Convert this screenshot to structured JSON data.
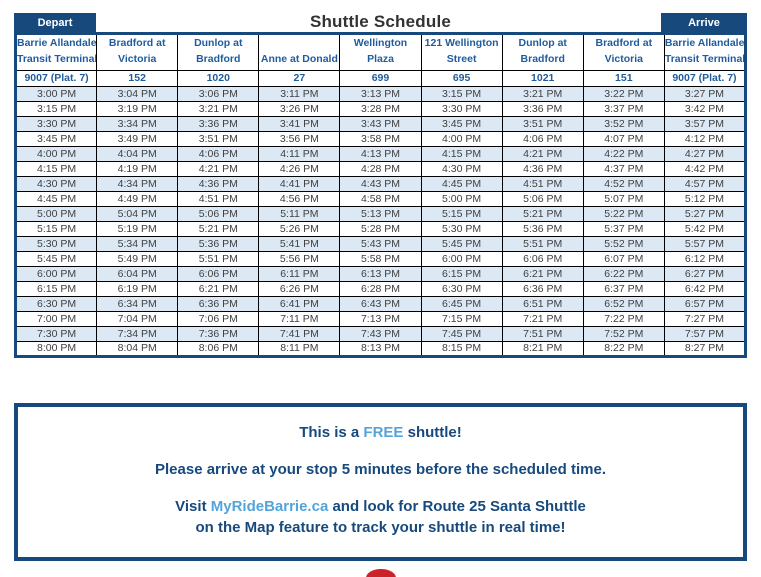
{
  "title": "Shuttle Schedule",
  "badges": {
    "depart": "Depart",
    "arrive": "Arrive"
  },
  "table": {
    "stops": [
      {
        "name_lines": [
          "Barrie Allandale",
          "Transit Terminal"
        ],
        "stop_number": "9007 (Plat. 7)"
      },
      {
        "name_lines": [
          "Bradford at",
          "Victoria"
        ],
        "stop_number": "152"
      },
      {
        "name_lines": [
          "Dunlop at",
          "Bradford"
        ],
        "stop_number": "1020"
      },
      {
        "name_lines": [
          "Anne at Donald"
        ],
        "stop_number": "27"
      },
      {
        "name_lines": [
          "Wellington",
          "Plaza"
        ],
        "stop_number": "699"
      },
      {
        "name_lines": [
          "121 Wellington",
          "Street"
        ],
        "stop_number": "695"
      },
      {
        "name_lines": [
          "Dunlop at",
          "Bradford"
        ],
        "stop_number": "1021"
      },
      {
        "name_lines": [
          "Bradford at",
          "Victoria"
        ],
        "stop_number": "151"
      },
      {
        "name_lines": [
          "Barrie Allandale",
          "Transit Terminal"
        ],
        "stop_number": "9007 (Plat. 7)"
      }
    ],
    "rows": [
      [
        "3:00 PM",
        "3:04 PM",
        "3:06 PM",
        "3:11 PM",
        "3:13 PM",
        "3:15 PM",
        "3:21 PM",
        "3:22 PM",
        "3:27 PM"
      ],
      [
        "3:15 PM",
        "3:19 PM",
        "3:21 PM",
        "3:26 PM",
        "3:28 PM",
        "3:30 PM",
        "3:36 PM",
        "3:37 PM",
        "3:42 PM"
      ],
      [
        "3:30 PM",
        "3:34 PM",
        "3:36 PM",
        "3:41 PM",
        "3:43 PM",
        "3:45 PM",
        "3:51 PM",
        "3:52 PM",
        "3:57 PM"
      ],
      [
        "3:45 PM",
        "3:49 PM",
        "3:51 PM",
        "3:56 PM",
        "3:58 PM",
        "4:00 PM",
        "4:06 PM",
        "4:07 PM",
        "4:12 PM"
      ],
      [
        "4:00 PM",
        "4:04 PM",
        "4:06 PM",
        "4:11 PM",
        "4:13 PM",
        "4:15 PM",
        "4:21 PM",
        "4:22 PM",
        "4:27 PM"
      ],
      [
        "4:15 PM",
        "4:19 PM",
        "4:21 PM",
        "4:26 PM",
        "4:28 PM",
        "4:30 PM",
        "4:36 PM",
        "4:37 PM",
        "4:42 PM"
      ],
      [
        "4:30 PM",
        "4:34 PM",
        "4:36 PM",
        "4:41 PM",
        "4:43 PM",
        "4:45 PM",
        "4:51 PM",
        "4:52 PM",
        "4:57 PM"
      ],
      [
        "4:45 PM",
        "4:49 PM",
        "4:51 PM",
        "4:56 PM",
        "4:58 PM",
        "5:00 PM",
        "5:06 PM",
        "5:07 PM",
        "5:12 PM"
      ],
      [
        "5:00 PM",
        "5:04 PM",
        "5:06 PM",
        "5:11 PM",
        "5:13 PM",
        "5:15 PM",
        "5:21 PM",
        "5:22 PM",
        "5:27 PM"
      ],
      [
        "5:15 PM",
        "5:19 PM",
        "5:21 PM",
        "5:26 PM",
        "5:28 PM",
        "5:30 PM",
        "5:36 PM",
        "5:37 PM",
        "5:42 PM"
      ],
      [
        "5:30 PM",
        "5:34 PM",
        "5:36 PM",
        "5:41 PM",
        "5:43 PM",
        "5:45 PM",
        "5:51 PM",
        "5:52 PM",
        "5:57 PM"
      ],
      [
        "5:45 PM",
        "5:49 PM",
        "5:51 PM",
        "5:56 PM",
        "5:58 PM",
        "6:00 PM",
        "6:06 PM",
        "6:07 PM",
        "6:12 PM"
      ],
      [
        "6:00 PM",
        "6:04 PM",
        "6:06 PM",
        "6:11 PM",
        "6:13 PM",
        "6:15 PM",
        "6:21 PM",
        "6:22 PM",
        "6:27 PM"
      ],
      [
        "6:15 PM",
        "6:19 PM",
        "6:21 PM",
        "6:26 PM",
        "6:28 PM",
        "6:30 PM",
        "6:36 PM",
        "6:37 PM",
        "6:42 PM"
      ],
      [
        "6:30 PM",
        "6:34 PM",
        "6:36 PM",
        "6:41 PM",
        "6:43 PM",
        "6:45 PM",
        "6:51 PM",
        "6:52 PM",
        "6:57 PM"
      ],
      [
        "7:00 PM",
        "7:04 PM",
        "7:06 PM",
        "7:11 PM",
        "7:13 PM",
        "7:15 PM",
        "7:21 PM",
        "7:22 PM",
        "7:27 PM"
      ],
      [
        "7:30 PM",
        "7:34 PM",
        "7:36 PM",
        "7:41 PM",
        "7:43 PM",
        "7:45 PM",
        "7:51 PM",
        "7:52 PM",
        "7:57 PM"
      ],
      [
        "8:00 PM",
        "8:04 PM",
        "8:06 PM",
        "8:11 PM",
        "8:13 PM",
        "8:15 PM",
        "8:21 PM",
        "8:22 PM",
        "8:27 PM"
      ]
    ]
  },
  "info_box": {
    "line1_prefix": "This is a ",
    "line1_highlight": "FREE",
    "line1_suffix": " shuttle!",
    "line2": "Please arrive at your stop 5 minutes before the scheduled time.",
    "line3_prefix": "Visit ",
    "line3_link": "MyRideBarrie.ca",
    "line3_suffix": " and look for Route 25 Santa Shuttle",
    "line4": "on the Map feature to track your shuttle in real time!"
  },
  "colors": {
    "navy": "#17497D",
    "header_blue": "#1F5C9E",
    "row_alt_blue": "#DCE9F5",
    "accent_blue": "#54A4D9",
    "time_text": "#404040",
    "logo_red": "#CC2229"
  }
}
